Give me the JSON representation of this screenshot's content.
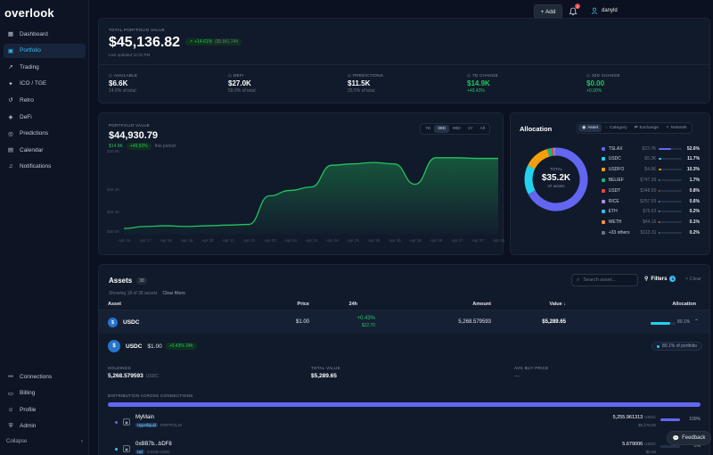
{
  "app": {
    "logo": "overlook"
  },
  "sidebar": {
    "items": [
      {
        "label": "Dashboard",
        "icon": "grid-icon"
      },
      {
        "label": "Portfolio",
        "icon": "wallet-icon",
        "active": true
      },
      {
        "label": "Trading",
        "icon": "trend-icon"
      },
      {
        "label": "ICO / TGE",
        "icon": "rocket-icon"
      },
      {
        "label": "Retro",
        "icon": "history-icon"
      },
      {
        "label": "DeFi",
        "icon": "layers-icon"
      },
      {
        "label": "Predictions",
        "icon": "target-icon"
      },
      {
        "label": "Calendar",
        "icon": "calendar-icon"
      },
      {
        "label": "Notifications",
        "icon": "bell-icon"
      }
    ],
    "bottom_items": [
      {
        "label": "Connections",
        "icon": "link-icon"
      },
      {
        "label": "Billing",
        "icon": "card-icon"
      },
      {
        "label": "Profile",
        "icon": "user-icon"
      },
      {
        "label": "Admin",
        "icon": "shield-icon"
      }
    ],
    "collapse_label": "Collapse"
  },
  "topbar": {
    "add_label": "+ Add",
    "notif_count": "2",
    "username": "danyld"
  },
  "summary": {
    "label": "TOTAL PORTFOLIO VALUE",
    "value": "$45,136.82",
    "change_pct": "+14.61%",
    "change_abs": "($5.8K) 24h",
    "updated": "Last updated 11:01 PM",
    "stats": [
      {
        "label": "AVAILABLE",
        "value": "$6.6K",
        "sub": "14.6% of total",
        "positive": false
      },
      {
        "label": "DEFI",
        "value": "$27.0K",
        "sub": "59.9% of total",
        "positive": false
      },
      {
        "label": "PREDICTIONS",
        "value": "$11.5K",
        "sub": "25.5% of total",
        "positive": false
      },
      {
        "label": "7D CHANGE",
        "value": "$14.9K",
        "sub": "+49.43%",
        "positive": true
      },
      {
        "label": "30D CHANGE",
        "value": "$0.00",
        "sub": "+0.00%",
        "positive": true
      }
    ]
  },
  "chart_panel": {
    "label": "PORTFOLIO VALUE",
    "value": "$44,930.79",
    "change": "$14.9K",
    "change_pct": "+49.52%",
    "period_text": "this period",
    "ranges": [
      "7D",
      "30D",
      "90D",
      "1Y",
      "All"
    ],
    "active_range": "30D"
  },
  "chart_data": {
    "type": "area",
    "title": "",
    "xlabel": "",
    "ylabel": "",
    "y_tick_labels": [
      "$40.8K",
      "$35.2K",
      "$33.2K",
      "$30.0K"
    ],
    "x": [
      "Apr 16",
      "Apr 17",
      "Apr 18",
      "Apr 19",
      "Apr 20",
      "Apr 21",
      "Apr 22",
      "Apr 23",
      "Apr 24",
      "Apr 24",
      "Apr 24",
      "Apr 25",
      "Apr 25",
      "Apr 26",
      "Apr 26",
      "Apr 26",
      "Apr 27",
      "Apr 27",
      "Apr 28"
    ],
    "series": [
      {
        "values": [
          30900,
          31200,
          31300,
          31200,
          31300,
          31400,
          31500,
          35700,
          36500,
          37000,
          40200,
          40400,
          40600,
          40400,
          37400,
          41300,
          41300,
          41200,
          41200
        ]
      }
    ],
    "ylim": [
      30000,
      41800
    ],
    "grid": false,
    "color": "#22c55e"
  },
  "allocation": {
    "title": "Allocation",
    "tabs": [
      "Asset",
      "Category",
      "Exchange",
      "Network"
    ],
    "active_tab": "Asset",
    "donut_total_label": "TOTAL",
    "donut_total": "$35.2K",
    "donut_sub": "47 assets",
    "items": [
      {
        "name": "TSLAX",
        "value": "$23.7K",
        "pct": "52.6%",
        "pct_num": 52.6,
        "color": "#6366f1"
      },
      {
        "name": "USDC",
        "value": "$5.3K",
        "pct": "11.7%",
        "pct_num": 11.7,
        "color": "#22d3ee"
      },
      {
        "name": "USDFO",
        "value": "$4.6K",
        "pct": "10.3%",
        "pct_num": 10.3,
        "color": "#f59e0b"
      },
      {
        "name": "BELIEF",
        "value": "$747.39",
        "pct": "1.7%",
        "pct_num": 1.7,
        "color": "#10b981"
      },
      {
        "name": "USDT",
        "value": "$348.60",
        "pct": "0.8%",
        "pct_num": 0.8,
        "color": "#ef4444"
      },
      {
        "name": "RICE",
        "value": "$257.93",
        "pct": "0.6%",
        "pct_num": 0.6,
        "color": "#a78bfa"
      },
      {
        "name": "ETH",
        "value": "$75.63",
        "pct": "0.2%",
        "pct_num": 0.2,
        "color": "#38bdf8"
      },
      {
        "name": "WETH",
        "value": "$44.16",
        "pct": "0.1%",
        "pct_num": 0.1,
        "color": "#fb923c"
      },
      {
        "name": "+33 others",
        "value": "$113.31",
        "pct": "0.2%",
        "pct_num": 0.2,
        "color": "#6b7280"
      }
    ]
  },
  "assets": {
    "title": "Assets",
    "count": "38",
    "showing": "Showing 18 of 38 assets",
    "clear_filters": "Clear filters",
    "search_placeholder": "Search asset...",
    "filters_label": "Filters",
    "filters_count": "1",
    "clear_label": "× Clear",
    "columns": [
      "Asset",
      "Price",
      "24h",
      "Amount",
      "Value ↓",
      "Allocation"
    ],
    "rows": [
      {
        "name": "USDC",
        "price": "$1.00",
        "change": "+0.43%",
        "change_abs": "$22.70",
        "amount": "5,268.579593",
        "value": "$5,289.65",
        "alloc": "80.1%",
        "alloc_num": 80.1
      }
    ],
    "detail": {
      "name": "USDC",
      "price": "$1.00",
      "change": "+0.43% 24h",
      "portfolio_badge": "80.1% of portfolio",
      "holdings_label": "HOLDINGS",
      "holdings": "5,268.579593",
      "holdings_unit": "USDC",
      "total_label": "TOTAL VALUE",
      "total": "$5,289.65",
      "avg_label": "AVG BUY PRICE",
      "avg": "—",
      "dist_label": "DISTRIBUTION ACROSS CONNECTIONS",
      "connections": [
        {
          "name": "MyMain",
          "tag": "Hyperliquid",
          "sub": "PORTFOLIO",
          "amount": "5,255.961313",
          "unit": "USDC",
          "value": "$5,276.00",
          "pct": "100%",
          "pct_num": 100
        },
        {
          "name": "0xBB7b...bDF8",
          "tag": "Hyl",
          "sub": "0.0105 USDC",
          "amount": "5.679006",
          "unit": "USDC",
          "value": "$5.69",
          "pct": "0%",
          "pct_num": 0
        }
      ]
    }
  },
  "feedback_label": "Feedback"
}
